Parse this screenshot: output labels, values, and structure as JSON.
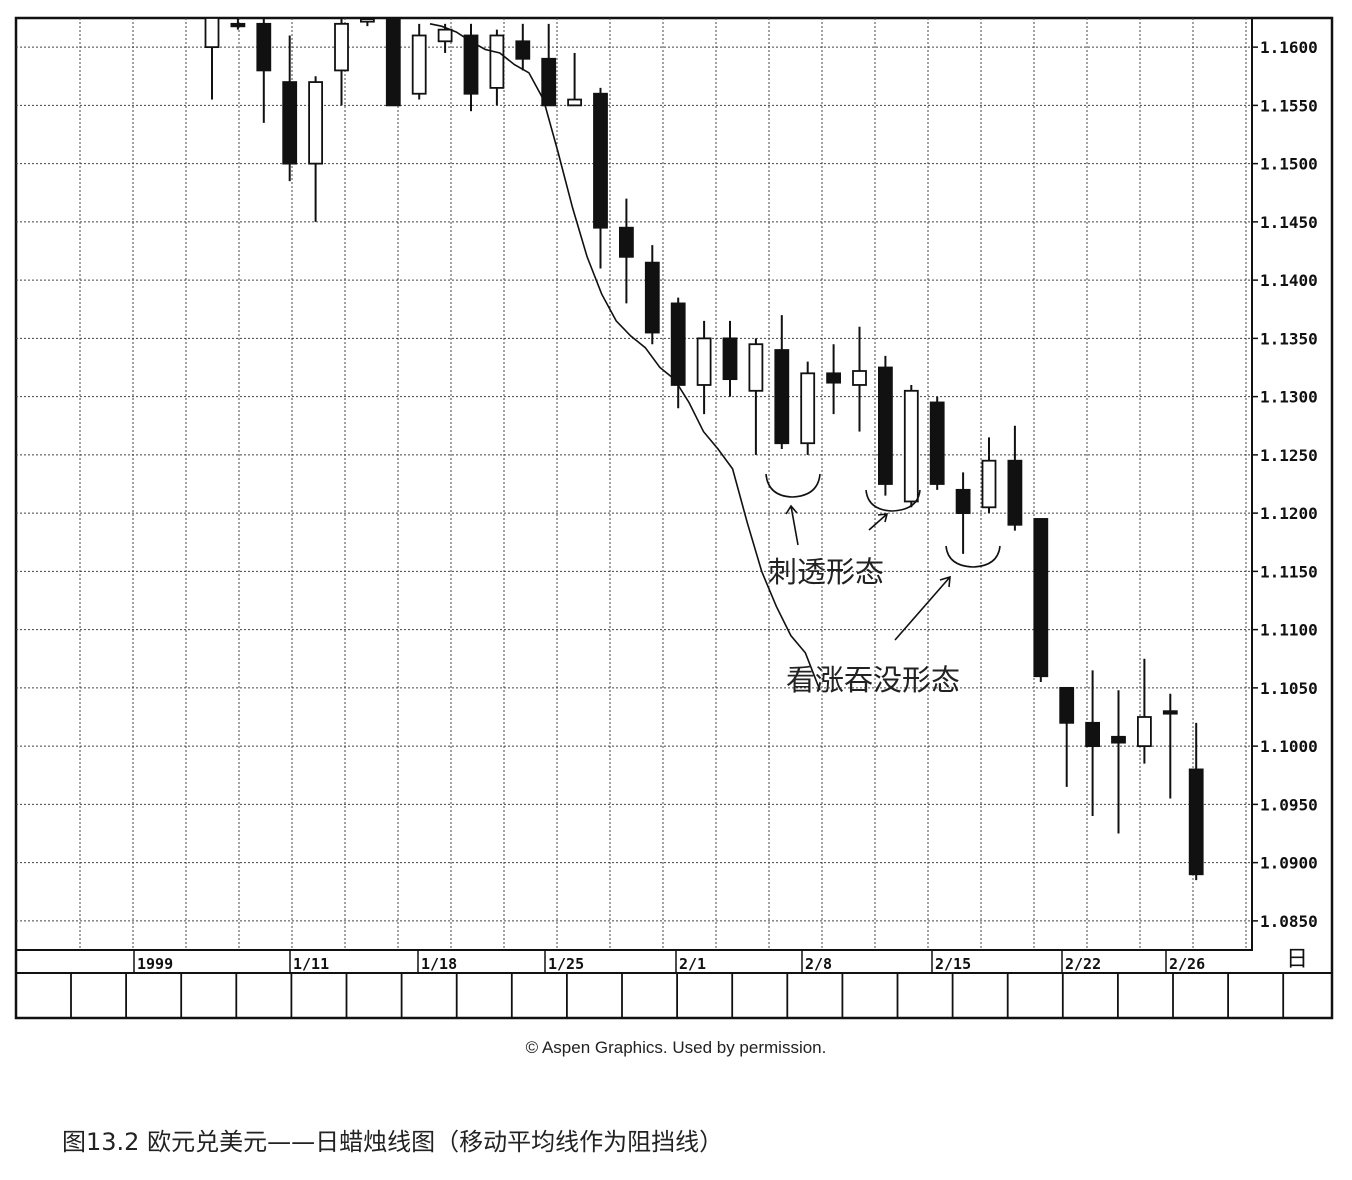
{
  "chart_data": {
    "type": "candlestick",
    "title": "",
    "xlabel": "",
    "ylabel": "",
    "ylim": [
      1.0825,
      1.1625
    ],
    "yticks": [
      "1.1600",
      "1.1550",
      "1.1500",
      "1.1450",
      "1.1400",
      "1.1350",
      "1.1300",
      "1.1250",
      "1.1200",
      "1.1150",
      "1.1100",
      "1.1050",
      "1.1000",
      "1.0950",
      "1.0900",
      "1.0850"
    ],
    "period_label": "日",
    "date_labels": [
      {
        "index": 0,
        "text": "1999"
      },
      {
        "index": 5,
        "text": "1/11"
      },
      {
        "index": 10,
        "text": "1/18"
      },
      {
        "index": 15,
        "text": "1/25"
      },
      {
        "index": 20,
        "text": "2/1"
      },
      {
        "index": 25,
        "text": "2/8"
      },
      {
        "index": 30,
        "text": "2/15"
      },
      {
        "index": 35,
        "text": "2/22"
      },
      {
        "index": 39,
        "text": "2/26"
      }
    ],
    "candles": [
      {
        "o": 1.16,
        "h": 1.1625,
        "l": 1.1555,
        "c": 1.1625
      },
      {
        "o": 1.162,
        "h": 1.1625,
        "l": 1.1615,
        "c": 1.1618
      },
      {
        "o": 1.162,
        "h": 1.1625,
        "l": 1.1535,
        "c": 1.158
      },
      {
        "o": 1.157,
        "h": 1.161,
        "l": 1.1485,
        "c": 1.15
      },
      {
        "o": 1.15,
        "h": 1.1575,
        "l": 1.145,
        "c": 1.157
      },
      {
        "o": 1.158,
        "h": 1.1625,
        "l": 1.155,
        "c": 1.162
      },
      {
        "o": 1.1622,
        "h": 1.1625,
        "l": 1.1618,
        "c": 1.1624
      },
      {
        "o": 1.1625,
        "h": 1.1625,
        "l": 1.155,
        "c": 1.155
      },
      {
        "o": 1.156,
        "h": 1.162,
        "l": 1.1555,
        "c": 1.161
      },
      {
        "o": 1.1605,
        "h": 1.162,
        "l": 1.1595,
        "c": 1.1615
      },
      {
        "o": 1.161,
        "h": 1.162,
        "l": 1.1545,
        "c": 1.156
      },
      {
        "o": 1.1565,
        "h": 1.1615,
        "l": 1.155,
        "c": 1.161
      },
      {
        "o": 1.1605,
        "h": 1.162,
        "l": 1.158,
        "c": 1.159
      },
      {
        "o": 1.159,
        "h": 1.162,
        "l": 1.155,
        "c": 1.155
      },
      {
        "o": 1.155,
        "h": 1.1595,
        "l": 1.155,
        "c": 1.1555
      },
      {
        "o": 1.156,
        "h": 1.1565,
        "l": 1.141,
        "c": 1.1445
      },
      {
        "o": 1.1445,
        "h": 1.147,
        "l": 1.138,
        "c": 1.142
      },
      {
        "o": 1.1415,
        "h": 1.143,
        "l": 1.1345,
        "c": 1.1355
      },
      {
        "o": 1.138,
        "h": 1.1385,
        "l": 1.129,
        "c": 1.131
      },
      {
        "o": 1.131,
        "h": 1.1365,
        "l": 1.1285,
        "c": 1.135
      },
      {
        "o": 1.135,
        "h": 1.1365,
        "l": 1.13,
        "c": 1.1315
      },
      {
        "o": 1.1305,
        "h": 1.135,
        "l": 1.125,
        "c": 1.1345
      },
      {
        "o": 1.134,
        "h": 1.137,
        "l": 1.1255,
        "c": 1.126
      },
      {
        "o": 1.126,
        "h": 1.133,
        "l": 1.125,
        "c": 1.132
      },
      {
        "o": 1.132,
        "h": 1.1345,
        "l": 1.1285,
        "c": 1.1312
      },
      {
        "o": 1.131,
        "h": 1.136,
        "l": 1.127,
        "c": 1.1322
      },
      {
        "o": 1.1325,
        "h": 1.1335,
        "l": 1.1215,
        "c": 1.1225
      },
      {
        "o": 1.121,
        "h": 1.131,
        "l": 1.1205,
        "c": 1.1305
      },
      {
        "o": 1.1295,
        "h": 1.13,
        "l": 1.122,
        "c": 1.1225
      },
      {
        "o": 1.122,
        "h": 1.1235,
        "l": 1.1165,
        "c": 1.12
      },
      {
        "o": 1.1205,
        "h": 1.1265,
        "l": 1.12,
        "c": 1.1245
      },
      {
        "o": 1.1245,
        "h": 1.1275,
        "l": 1.1185,
        "c": 1.119
      },
      {
        "o": 1.1195,
        "h": 1.1195,
        "l": 1.1055,
        "c": 1.106
      },
      {
        "o": 1.105,
        "h": 1.105,
        "l": 1.0965,
        "c": 1.102
      },
      {
        "o": 1.102,
        "h": 1.1065,
        "l": 1.094,
        "c": 1.1
      },
      {
        "o": 1.1008,
        "h": 1.1048,
        "l": 1.0925,
        "c": 1.1003
      },
      {
        "o": 1.1,
        "h": 1.1075,
        "l": 1.0985,
        "c": 1.1025
      },
      {
        "o": 1.103,
        "h": 1.1045,
        "l": 1.0955,
        "c": 1.1028
      },
      {
        "o": 1.098,
        "h": 1.102,
        "l": 1.0885,
        "c": 1.089
      }
    ],
    "moving_average": [
      {
        "x": 16.2,
        "y": 1.162
      },
      {
        "x": 17.0,
        "y": 1.1618
      },
      {
        "x": 18.0,
        "y": 1.1613
      },
      {
        "x": 19.0,
        "y": 1.1605
      },
      {
        "x": 20.0,
        "y": 1.1598
      },
      {
        "x": 21.0,
        "y": 1.1595
      },
      {
        "x": 22.0,
        "y": 1.1585
      },
      {
        "x": 23.0,
        "y": 1.1578
      },
      {
        "x": 24.0,
        "y": 1.1555
      },
      {
        "x": 25.0,
        "y": 1.151
      },
      {
        "x": 26.0,
        "y": 1.1462
      },
      {
        "x": 27.0,
        "y": 1.142
      },
      {
        "x": 28.0,
        "y": 1.1388
      },
      {
        "x": 29.0,
        "y": 1.1365
      },
      {
        "x": 30.0,
        "y": 1.1352
      },
      {
        "x": 31.0,
        "y": 1.1342
      },
      {
        "x": 32.0,
        "y": 1.1325
      },
      {
        "x": 33.0,
        "y": 1.1315
      },
      {
        "x": 34.0,
        "y": 1.1295
      },
      {
        "x": 35.0,
        "y": 1.127
      },
      {
        "x": 36.0,
        "y": 1.1255
      },
      {
        "x": 37.0,
        "y": 1.1238
      },
      {
        "x": 38.0,
        "y": 1.1192
      },
      {
        "x": 39.0,
        "y": 1.115
      },
      {
        "x": 40.0,
        "y": 1.112
      },
      {
        "x": 41.0,
        "y": 1.1095
      },
      {
        "x": 42.0,
        "y": 1.108
      },
      {
        "x": 43.0,
        "y": 1.1048
      }
    ],
    "annotations": [
      {
        "text": "刺透形态"
      },
      {
        "text": "看涨吞没形态"
      }
    ]
  },
  "credit": "© Aspen Graphics. Used by permission.",
  "caption": "图13.2 欧元兑美元——日蜡烛线图（移动平均线作为阻挡线）"
}
